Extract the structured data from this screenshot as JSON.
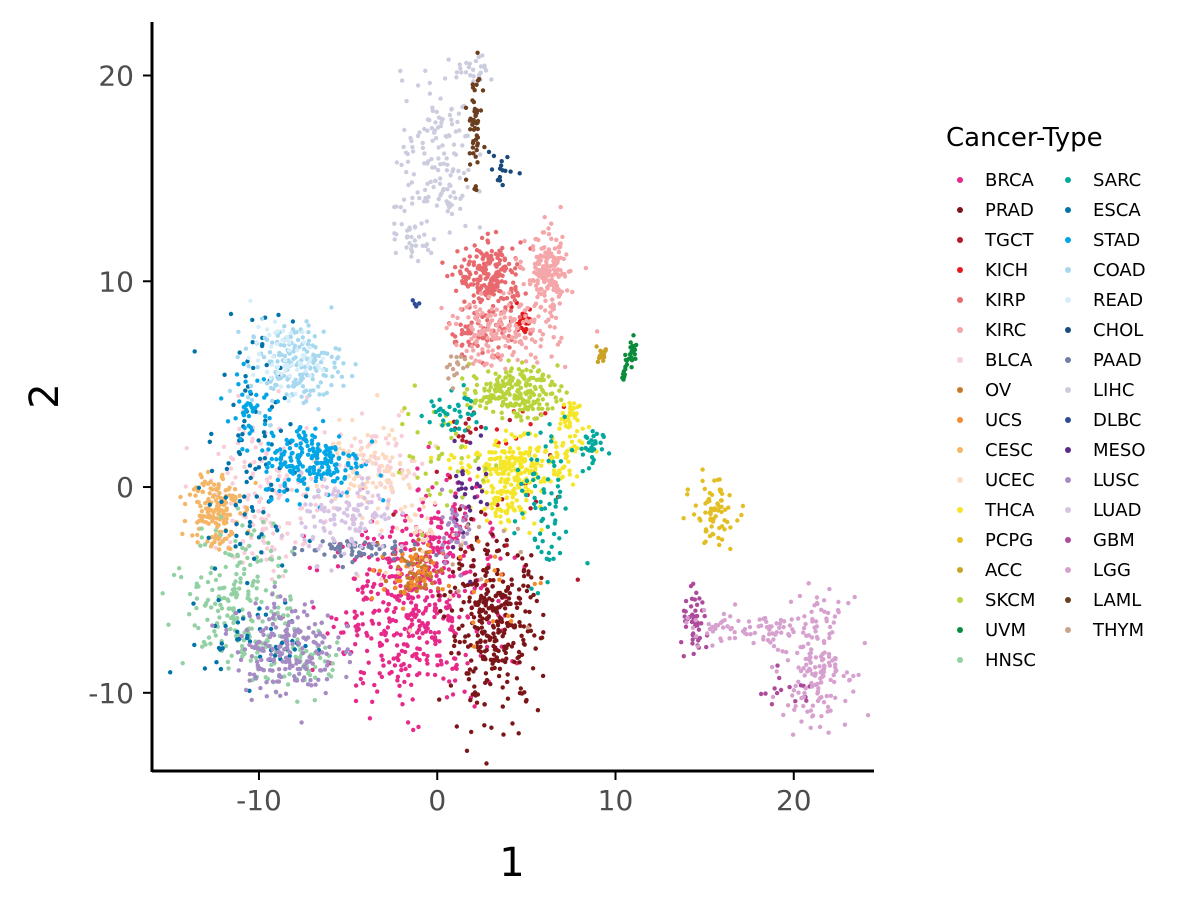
{
  "chart_data": {
    "type": "scatter",
    "title": "",
    "xlabel": "1",
    "ylabel": "2",
    "xlim": [
      -16,
      24.5
    ],
    "ylim": [
      -13.8,
      22.6
    ],
    "x_ticks": [
      -10,
      0,
      10,
      20
    ],
    "y_ticks": [
      -10,
      0,
      10,
      20
    ],
    "x_tick_labels": [
      "-10",
      "0",
      "10",
      "20"
    ],
    "y_tick_labels": [
      "-10",
      "0",
      "10",
      "20"
    ],
    "grid": false,
    "legend": {
      "title": "Cancer-Type",
      "position": "right",
      "columns": 2
    },
    "series": [
      {
        "name": "BRCA",
        "color": "#E7298A",
        "clusters": [
          {
            "cx": -1.5,
            "cy": -6.0,
            "sx": 2.2,
            "sy": 2.2,
            "n": 420
          },
          {
            "cx": 0.0,
            "cy": -2.5,
            "sx": 1.2,
            "sy": 1.5,
            "n": 120
          }
        ]
      },
      {
        "name": "PRAD",
        "color": "#7B1518",
        "clusters": [
          {
            "cx": 3.2,
            "cy": -6.8,
            "sx": 1.3,
            "sy": 2.0,
            "n": 320
          }
        ]
      },
      {
        "name": "TGCT",
        "color": "#B2182B",
        "clusters": [
          {
            "cx": 1.5,
            "cy": 2.8,
            "sx": 0.4,
            "sy": 0.3,
            "n": 12
          },
          {
            "cx": 3.0,
            "cy": 0.0,
            "sx": 2.5,
            "sy": 2.5,
            "n": 20
          }
        ]
      },
      {
        "name": "KICH",
        "color": "#E41A1C",
        "clusters": [
          {
            "cx": 4.8,
            "cy": 8.1,
            "sx": 0.3,
            "sy": 0.3,
            "n": 30
          },
          {
            "cx": 5.0,
            "cy": 3.0,
            "sx": 1.0,
            "sy": 1.0,
            "n": 12
          }
        ]
      },
      {
        "name": "KIRP",
        "color": "#E8696E",
        "clusters": [
          {
            "cx": 3.0,
            "cy": 10.2,
            "sx": 0.9,
            "sy": 0.8,
            "n": 200
          },
          {
            "cx": 2.5,
            "cy": 7.5,
            "sx": 1.0,
            "sy": 0.6,
            "n": 80
          }
        ]
      },
      {
        "name": "KIRC",
        "color": "#F4A6A8",
        "clusters": [
          {
            "cx": 6.2,
            "cy": 10.3,
            "sx": 0.6,
            "sy": 1.0,
            "n": 180
          },
          {
            "cx": 3.6,
            "cy": 7.5,
            "sx": 1.5,
            "sy": 0.8,
            "n": 160
          }
        ]
      },
      {
        "name": "BLCA",
        "color": "#F8CDD9",
        "clusters": [
          {
            "cx": -9.5,
            "cy": -0.5,
            "sx": 1.5,
            "sy": 2.0,
            "n": 150
          },
          {
            "cx": -3.5,
            "cy": 1.0,
            "sx": 1.5,
            "sy": 1.0,
            "n": 60
          }
        ]
      },
      {
        "name": "OV",
        "color": "#C8782E",
        "clusters": [
          {
            "cx": -1.0,
            "cy": -4.0,
            "sx": 0.6,
            "sy": 0.6,
            "n": 60
          }
        ]
      },
      {
        "name": "UCS",
        "color": "#F38C2B",
        "clusters": [
          {
            "cx": -2.0,
            "cy": -4.2,
            "sx": 1.2,
            "sy": 0.6,
            "n": 40
          },
          {
            "cx": 3.0,
            "cy": -5.0,
            "sx": 1.5,
            "sy": 1.5,
            "n": 15
          }
        ]
      },
      {
        "name": "CESC",
        "color": "#F4B666",
        "clusters": [
          {
            "cx": -12.5,
            "cy": -1.0,
            "sx": 0.7,
            "sy": 1.0,
            "n": 150
          }
        ]
      },
      {
        "name": "UCEC",
        "color": "#FCD9BF",
        "clusters": [
          {
            "cx": -4.5,
            "cy": 1.0,
            "sx": 1.5,
            "sy": 1.0,
            "n": 80
          },
          {
            "cx": -1.0,
            "cy": -1.5,
            "sx": 1.5,
            "sy": 2.0,
            "n": 60
          }
        ]
      },
      {
        "name": "THCA",
        "color": "#F5E629",
        "clusters": [
          {
            "cx": 4.5,
            "cy": 1.2,
            "sx": 1.6,
            "sy": 0.6,
            "n": 200
          },
          {
            "cx": 4.0,
            "cy": -0.5,
            "sx": 0.8,
            "sy": 0.7,
            "n": 90
          },
          {
            "cx": 7.5,
            "cy": 3.0,
            "sx": 0.5,
            "sy": 0.8,
            "n": 40
          }
        ]
      },
      {
        "name": "PCPG",
        "color": "#E3BE23",
        "clusters": [
          {
            "cx": 15.5,
            "cy": -1.2,
            "sx": 0.6,
            "sy": 0.8,
            "n": 70
          }
        ]
      },
      {
        "name": "ACC",
        "color": "#C9A227",
        "clusters": [
          {
            "cx": 9.2,
            "cy": 6.5,
            "sx": 0.2,
            "sy": 0.3,
            "n": 15
          }
        ]
      },
      {
        "name": "SKCM",
        "color": "#B8D43A",
        "clusters": [
          {
            "cx": 4.3,
            "cy": 4.6,
            "sx": 1.2,
            "sy": 0.6,
            "n": 200
          },
          {
            "cx": 0.5,
            "cy": 1.5,
            "sx": 1.5,
            "sy": 1.5,
            "n": 40
          }
        ]
      },
      {
        "name": "UVM",
        "color": "#0A8C3C",
        "clusters": [
          {
            "cx": 10.9,
            "cy": 6.7,
            "sx": 0.15,
            "sy": 0.4,
            "n": 20
          },
          {
            "cx": 10.5,
            "cy": 5.7,
            "sx": 0.1,
            "sy": 0.3,
            "n": 10
          }
        ]
      },
      {
        "name": "HNSC",
        "color": "#93D1A4",
        "clusters": [
          {
            "cx": -11.0,
            "cy": -5.5,
            "sx": 1.5,
            "sy": 1.8,
            "n": 200
          },
          {
            "cx": -7.5,
            "cy": -8.5,
            "sx": 1.2,
            "sy": 0.8,
            "n": 60
          }
        ]
      },
      {
        "name": "SARC",
        "color": "#00A89D",
        "clusters": [
          {
            "cx": 6.0,
            "cy": -1.0,
            "sx": 0.8,
            "sy": 2.0,
            "n": 70
          },
          {
            "cx": 1.0,
            "cy": 3.5,
            "sx": 0.8,
            "sy": 0.6,
            "n": 40
          },
          {
            "cx": 8.5,
            "cy": 1.8,
            "sx": 0.4,
            "sy": 0.6,
            "n": 30
          }
        ]
      },
      {
        "name": "ESCA",
        "color": "#0073A8",
        "clusters": [
          {
            "cx": -10.5,
            "cy": 1.0,
            "sx": 1.2,
            "sy": 3.5,
            "n": 100
          },
          {
            "cx": -10.0,
            "cy": -7.5,
            "sx": 1.5,
            "sy": 1.0,
            "n": 50
          }
        ]
      },
      {
        "name": "STAD",
        "color": "#00A6E6",
        "clusters": [
          {
            "cx": -7.0,
            "cy": 1.3,
            "sx": 1.4,
            "sy": 0.9,
            "n": 200
          },
          {
            "cx": -10.5,
            "cy": 4.0,
            "sx": 0.7,
            "sy": 0.8,
            "n": 40
          }
        ]
      },
      {
        "name": "COAD",
        "color": "#A7D8F0",
        "clusters": [
          {
            "cx": -8.0,
            "cy": 6.0,
            "sx": 1.3,
            "sy": 1.0,
            "n": 180
          }
        ]
      },
      {
        "name": "READ",
        "color": "#D6EEF9",
        "clusters": [
          {
            "cx": -8.5,
            "cy": 6.2,
            "sx": 1.0,
            "sy": 0.8,
            "n": 60
          }
        ]
      },
      {
        "name": "CHOL",
        "color": "#1A4A7A",
        "clusters": [
          {
            "cx": 3.5,
            "cy": 15.5,
            "sx": 0.4,
            "sy": 0.6,
            "n": 15
          }
        ]
      },
      {
        "name": "PAAD",
        "color": "#6F7FA8",
        "clusters": [
          {
            "cx": -5.0,
            "cy": -3.0,
            "sx": 1.5,
            "sy": 0.3,
            "n": 60
          }
        ]
      },
      {
        "name": "LIHC",
        "color": "#CBCCDE",
        "clusters": [
          {
            "cx": 0.0,
            "cy": 16.0,
            "sx": 1.0,
            "sy": 2.0,
            "n": 140
          },
          {
            "cx": -1.5,
            "cy": 12.5,
            "sx": 0.6,
            "sy": 1.0,
            "n": 40
          },
          {
            "cx": 2.2,
            "cy": 20.3,
            "sx": 0.5,
            "sy": 0.3,
            "n": 25
          }
        ]
      },
      {
        "name": "DLBC",
        "color": "#2E4B99",
        "clusters": [
          {
            "cx": -1.2,
            "cy": 9.0,
            "sx": 0.2,
            "sy": 0.2,
            "n": 4
          }
        ]
      },
      {
        "name": "MESO",
        "color": "#5B2A86",
        "clusters": [
          {
            "cx": 1.8,
            "cy": 0.0,
            "sx": 0.6,
            "sy": 1.5,
            "n": 30
          }
        ]
      },
      {
        "name": "LUSC",
        "color": "#A68BC4",
        "clusters": [
          {
            "cx": -8.5,
            "cy": -7.8,
            "sx": 1.4,
            "sy": 1.2,
            "n": 200
          },
          {
            "cx": 1.0,
            "cy": -1.8,
            "sx": 0.5,
            "sy": 0.8,
            "n": 30
          }
        ]
      },
      {
        "name": "LUAD",
        "color": "#D7C4E4",
        "clusters": [
          {
            "cx": -5.0,
            "cy": -1.5,
            "sx": 1.3,
            "sy": 1.0,
            "n": 120
          }
        ]
      },
      {
        "name": "GBM",
        "color": "#AE4A9C",
        "clusters": [
          {
            "cx": 14.5,
            "cy": -6.8,
            "sx": 0.4,
            "sy": 0.8,
            "n": 50
          },
          {
            "cx": 19.5,
            "cy": -10.0,
            "sx": 1.0,
            "sy": 0.4,
            "n": 15
          }
        ]
      },
      {
        "name": "LGG",
        "color": "#D7A1CF",
        "clusters": [
          {
            "cx": 17.5,
            "cy": -7.0,
            "sx": 2.0,
            "sy": 0.5,
            "n": 80
          },
          {
            "cx": 21.3,
            "cy": -8.5,
            "sx": 0.9,
            "sy": 1.5,
            "n": 160
          }
        ]
      },
      {
        "name": "LAML",
        "color": "#6B3E1E",
        "clusters": [
          {
            "cx": 2.1,
            "cy": 17.5,
            "sx": 0.2,
            "sy": 1.3,
            "n": 50
          }
        ]
      },
      {
        "name": "THYM",
        "color": "#C9A48A",
        "clusters": [
          {
            "cx": 1.0,
            "cy": 6.0,
            "sx": 0.5,
            "sy": 0.5,
            "n": 15
          },
          {
            "cx": 3.0,
            "cy": -4.5,
            "sx": 2.0,
            "sy": 2.0,
            "n": 10
          }
        ]
      }
    ]
  }
}
